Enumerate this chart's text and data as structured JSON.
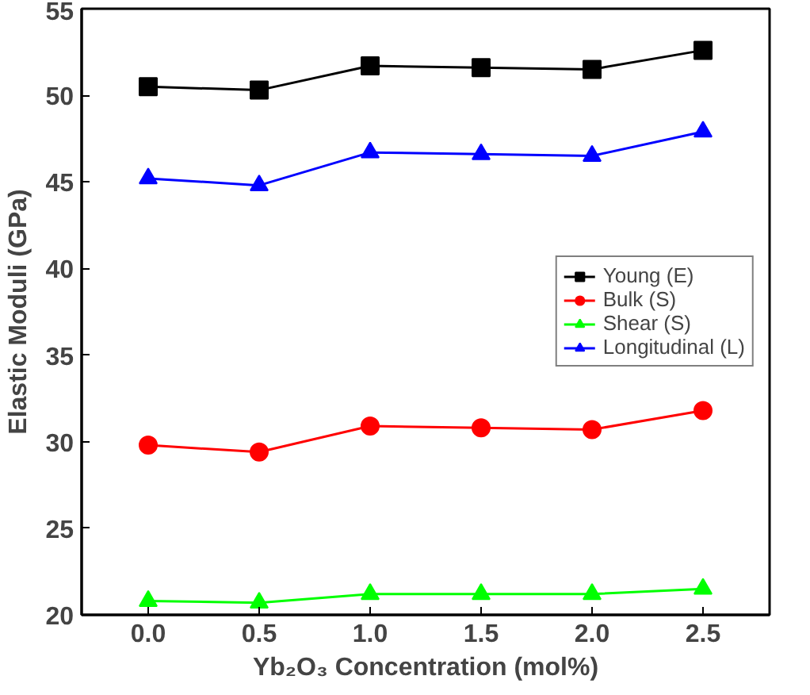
{
  "chart_data": {
    "type": "line",
    "xlabel": "Yb₂O₃ Concentration (mol%)",
    "ylabel": "Elastic Moduli (GPa)",
    "x": [
      0.0,
      0.5,
      1.0,
      1.5,
      2.0,
      2.5
    ],
    "series": [
      {
        "name": "Young (E)",
        "color": "#000000",
        "marker": "square",
        "values": [
          50.5,
          50.3,
          51.7,
          51.6,
          51.5,
          52.6
        ]
      },
      {
        "name": "Bulk (S)",
        "color": "#ff0000",
        "marker": "circle",
        "values": [
          29.8,
          29.4,
          30.9,
          30.8,
          30.7,
          31.8
        ]
      },
      {
        "name": "Shear (S)",
        "color": "#00ff00",
        "marker": "triangle",
        "values": [
          20.8,
          20.7,
          21.2,
          21.2,
          21.2,
          21.5
        ]
      },
      {
        "name": "Longitudinal (L)",
        "color": "#0000ff",
        "marker": "triangle",
        "values": [
          45.2,
          44.8,
          46.7,
          46.6,
          46.5,
          47.9
        ]
      }
    ],
    "xlim": [
      -0.3,
      2.8
    ],
    "xticks": [
      {
        "value": 0.0,
        "label": "0.0"
      },
      {
        "value": 0.5,
        "label": "0.5"
      },
      {
        "value": 1.0,
        "label": "1.0"
      },
      {
        "value": 1.5,
        "label": "1.5"
      },
      {
        "value": 2.0,
        "label": "2.0"
      },
      {
        "value": 2.5,
        "label": "2.5"
      }
    ],
    "ylim": [
      20,
      55
    ],
    "yticks": [
      20,
      25,
      30,
      35,
      40,
      45,
      50,
      55
    ],
    "grid": false,
    "legend": "right",
    "line_style": "solid"
  }
}
